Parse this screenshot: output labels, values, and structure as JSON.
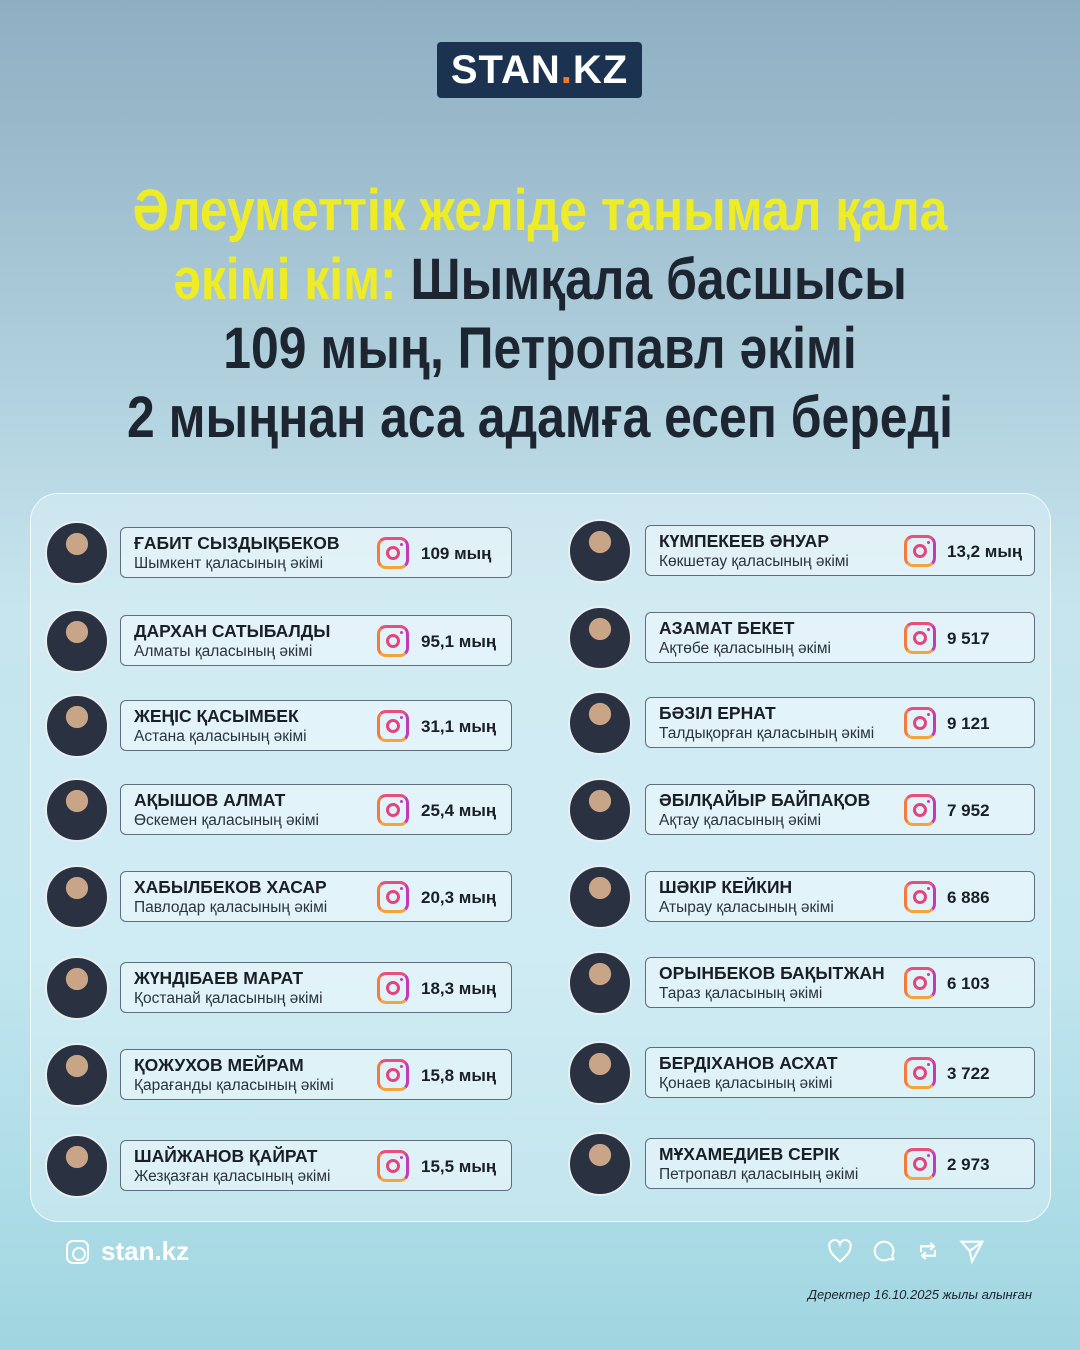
{
  "logo": {
    "text_main": "STAN",
    "text_dot": ".",
    "text_end": "KZ"
  },
  "title": {
    "line1": "Әлеуметтік желіде танымал қала",
    "line2_yellow": "әкімі кім:",
    "line2_dark": " Шымқала басшысы",
    "line3": "109 мың, Петропавл әкімі",
    "line4": "2 мыңнан аса адамға есеп береді"
  },
  "colors": {
    "accent_yellow": "#eeec24",
    "title_dark": "#1c2530",
    "logo_bg": "#1b3350"
  },
  "left": [
    {
      "name": "ҒАБИТ СЫЗДЫҚБЕКОВ",
      "city": "Шымкент қаласының әкімі",
      "followers": "109 мың"
    },
    {
      "name": "ДАРХАН САТЫБАЛДЫ",
      "city": "Алматы қаласының әкімі",
      "followers": "95,1 мың"
    },
    {
      "name": "ЖЕҢІС ҚАСЫМБЕК",
      "city": "Астана қаласының әкімі",
      "followers": "31,1 мың"
    },
    {
      "name": "АҚЫШОВ АЛМАТ",
      "city": "Өскемен қаласының әкімі",
      "followers": "25,4 мың"
    },
    {
      "name": "ХАБЫЛБЕКОВ ХАСАР",
      "city": "Павлодар қаласының әкімі",
      "followers": "20,3 мың"
    },
    {
      "name": "ЖҮНДІБАЕВ МАРАТ",
      "city": "Қостанай қаласының әкімі",
      "followers": "18,3 мың"
    },
    {
      "name": "ҚОЖУХОВ МЕЙРАМ",
      "city": "Қарағанды қаласының әкімі",
      "followers": "15,8 мың"
    },
    {
      "name": "ШАЙЖАНОВ ҚАЙРАТ",
      "city": "Жезқазған қаласының әкімі",
      "followers": "15,5 мың"
    }
  ],
  "right": [
    {
      "name": "КҮМПЕКЕЕВ ӘНУАР",
      "city": "Көкшетау қаласының әкімі",
      "followers": "13,2 мың"
    },
    {
      "name": "АЗАМАТ БЕКЕТ",
      "city": "Ақтөбе қаласының әкімі",
      "followers": "9 517"
    },
    {
      "name": "БӘЗІЛ ЕРНАТ",
      "city": "Талдықорған қаласының әкімі",
      "followers": "9 121"
    },
    {
      "name": "ӘБІЛҚАЙЫР БАЙПАҚОВ",
      "city": "Ақтау қаласының әкімі",
      "followers": "7 952"
    },
    {
      "name": "ШӘКІР КЕЙКИН",
      "city": "Атырау қаласының әкімі",
      "followers": "6 886"
    },
    {
      "name": "ОРЫНБЕКОВ БАҚЫТЖАН",
      "city": "Тараз қаласының әкімі",
      "followers": "6 103"
    },
    {
      "name": "БЕРДІХАНОВ АСХАТ",
      "city": "Қонаев қаласының әкімі",
      "followers": "3 722"
    },
    {
      "name": "МҰХАМЕДИЕВ СЕРІК",
      "city": "Петропавл қаласының әкімі",
      "followers": "2 973"
    }
  ],
  "footer": {
    "handle": "stan.kz",
    "note": "Деректер 16.10.2025 жылы алынған",
    "icons": [
      "heart-icon",
      "comment-icon",
      "repost-icon",
      "send-icon"
    ]
  }
}
